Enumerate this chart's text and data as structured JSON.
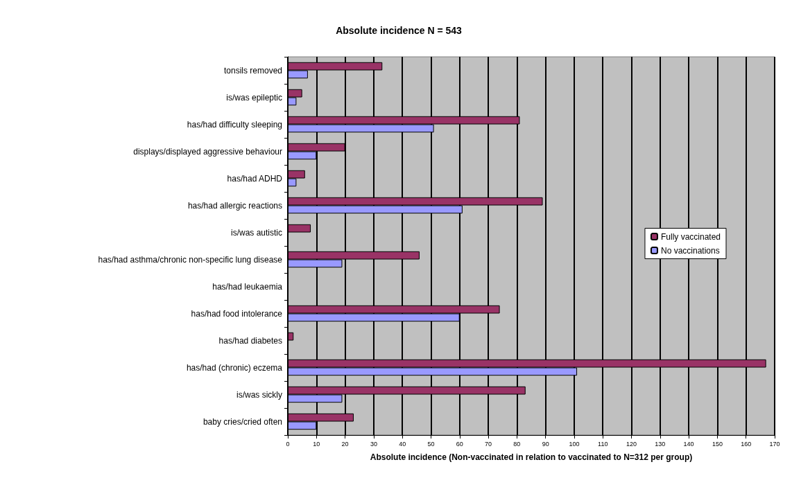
{
  "chart_data": {
    "type": "bar",
    "orientation": "horizontal",
    "title": "Absolute incidence N = 543",
    "xlabel": "Absolute incidence (Non-vaccinated in relation to vaccinated to N=312 per group)",
    "categories": [
      "tonsils removed",
      "is/was epileptic",
      "has/had difficulty sleeping",
      "displays/displayed aggressive behaviour",
      "has/had ADHD",
      "has/had allergic reactions",
      "is/was autistic",
      "has/had asthma/chronic non-specific lung disease",
      "has/had leukaemia",
      "has/had food intolerance",
      "has/had diabetes",
      "has/had (chronic) eczema",
      "is/was sickly",
      "baby cries/cried often"
    ],
    "series": [
      {
        "name": "Fully vaccinated",
        "color": "#993366",
        "values": [
          33,
          5,
          81,
          20,
          6,
          89,
          8,
          46,
          null,
          74,
          2,
          167,
          83,
          23
        ]
      },
      {
        "name": "No vaccinations",
        "color": "#9999ff",
        "values": [
          7,
          3,
          51,
          10,
          3,
          61,
          null,
          19,
          null,
          60,
          null,
          101,
          19,
          10
        ]
      }
    ],
    "xlim": [
      0,
      170
    ],
    "xticks": [
      0,
      10,
      20,
      30,
      40,
      50,
      60,
      70,
      80,
      90,
      100,
      110,
      120,
      130,
      140,
      150,
      160,
      170
    ],
    "grid": "x",
    "legend": "right"
  }
}
